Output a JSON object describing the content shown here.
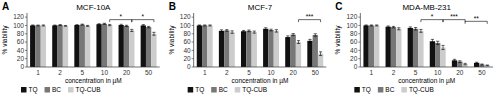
{
  "chart_data": [
    {
      "type": "bar",
      "panel_label": "A",
      "title": "MCF-10A",
      "xlabel": "concentration in µM",
      "ylabel": "% viability",
      "categories": [
        "1",
        "2",
        "5",
        "10",
        "20",
        "50"
      ],
      "series": [
        {
          "name": "TQ",
          "color": "#111111",
          "values": [
            100,
            100,
            101,
            103,
            101,
            100
          ],
          "errors": [
            1.2,
            1.0,
            1.0,
            1.2,
            1.8,
            2.0
          ]
        },
        {
          "name": "BC",
          "color": "#777777",
          "values": [
            100,
            101,
            102,
            104,
            99,
            96
          ],
          "errors": [
            1.0,
            1.2,
            1.2,
            1.3,
            1.5,
            1.8
          ]
        },
        {
          "name": "TQ-CUB",
          "color": "#cccccc",
          "values": [
            100,
            99,
            99,
            101,
            88,
            80
          ],
          "errors": [
            1.2,
            1.0,
            1.2,
            1.5,
            2.5,
            3.5
          ]
        }
      ],
      "brackets": [
        {
          "from": "10",
          "to": "20",
          "series": "TQ-CUB",
          "y": 114,
          "text": "*"
        },
        {
          "from": "20",
          "to": "50",
          "series": "TQ-CUB",
          "y": 114,
          "text": "*"
        }
      ],
      "ylim": [
        0,
        130
      ],
      "yticks": [
        0,
        20,
        40,
        60,
        80,
        100,
        120
      ],
      "grid": false,
      "legend": "bottom"
    },
    {
      "type": "bar",
      "panel_label": "B",
      "title": "MCF-7",
      "xlabel": "concentration in µM",
      "ylabel": "% viability",
      "categories": [
        "1",
        "2",
        "5",
        "10",
        "20",
        "50"
      ],
      "series": [
        {
          "name": "TQ",
          "color": "#111111",
          "values": [
            100,
            87,
            86,
            92,
            72,
            63
          ],
          "errors": [
            1.2,
            2.5,
            2.0,
            2.5,
            3.0,
            3.5
          ]
        },
        {
          "name": "BC",
          "color": "#777777",
          "values": [
            100,
            88,
            87,
            89,
            78,
            77
          ],
          "errors": [
            1.2,
            2.0,
            2.0,
            2.0,
            2.5,
            3.0
          ]
        },
        {
          "name": "TQ-CUB",
          "color": "#cccccc",
          "values": [
            100,
            84,
            84,
            87,
            60,
            32
          ],
          "errors": [
            1.2,
            3.0,
            2.5,
            3.0,
            3.5,
            4.5
          ]
        }
      ],
      "brackets": [
        {
          "from": "20",
          "to": "50",
          "series": "TQ-CUB",
          "y": 114,
          "text": "***"
        }
      ],
      "ylim": [
        0,
        130
      ],
      "yticks": [
        0,
        20,
        40,
        60,
        80,
        100,
        120
      ],
      "grid": false,
      "legend": "bottom"
    },
    {
      "type": "bar",
      "panel_label": "C",
      "title": "MDA-MB-231",
      "xlabel": "concentration in µM",
      "ylabel": "% viability",
      "categories": [
        "1",
        "2",
        "5",
        "10",
        "20",
        "50"
      ],
      "series": [
        {
          "name": "TQ",
          "color": "#111111",
          "values": [
            100,
            97,
            94,
            62,
            16,
            10
          ],
          "errors": [
            1.2,
            1.8,
            2.5,
            4.5,
            2.5,
            1.5
          ]
        },
        {
          "name": "BC",
          "color": "#777777",
          "values": [
            100,
            96,
            92,
            58,
            13,
            6
          ],
          "errors": [
            1.2,
            1.8,
            3.0,
            4.0,
            2.0,
            1.2
          ]
        },
        {
          "name": "TQ-CUB",
          "color": "#cccccc",
          "values": [
            100,
            92,
            87,
            47,
            7,
            4
          ],
          "errors": [
            1.2,
            2.5,
            3.5,
            5.0,
            1.8,
            0.8
          ]
        }
      ],
      "brackets": [
        {
          "from": "5",
          "to": "10",
          "series": "TQ-CUB",
          "y": 114,
          "text": "*"
        },
        {
          "from": "10",
          "to": "20",
          "series": "TQ-CUB",
          "y": 114,
          "text": "***"
        },
        {
          "from": "20",
          "to": "50",
          "series": "TQ-CUB",
          "y": 110,
          "text": "**"
        }
      ],
      "ylim": [
        0,
        130
      ],
      "yticks": [
        0,
        20,
        40,
        60,
        80,
        100,
        120
      ],
      "grid": false,
      "legend": "bottom"
    }
  ]
}
